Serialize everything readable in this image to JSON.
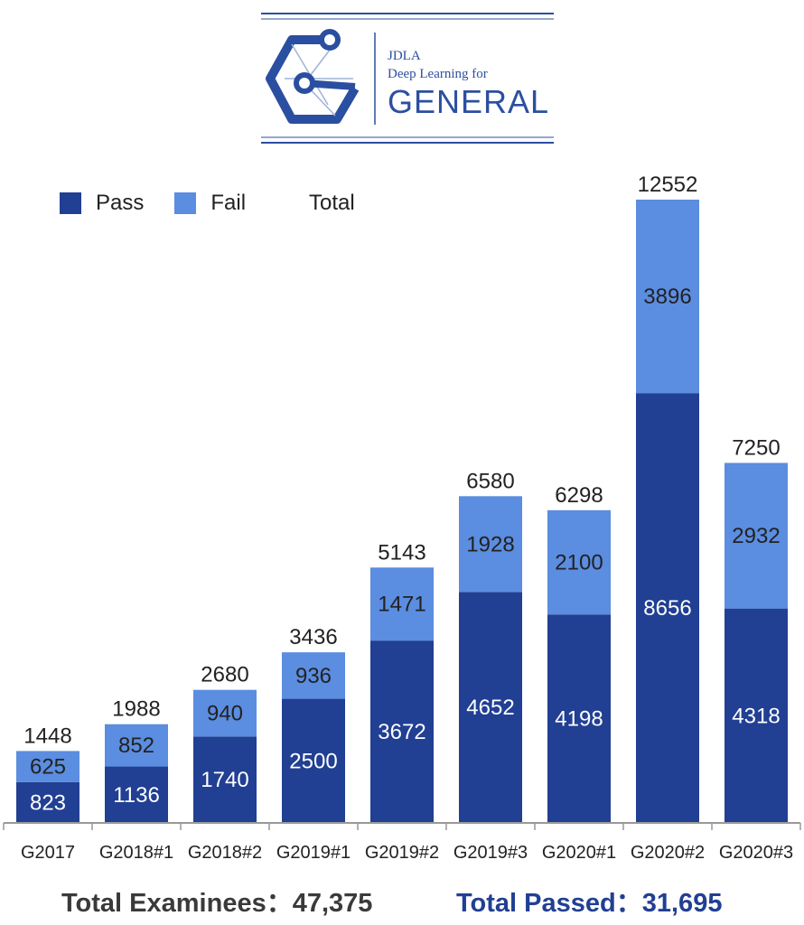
{
  "logo": {
    "line1": "JDLA",
    "line2": "Deep Learning for",
    "line3": "GENERAL",
    "icon": "hexagon-g-network-icon",
    "color": "#2b4fa0"
  },
  "legend": {
    "pass_label": "Pass",
    "fail_label": "Fail",
    "total_label": "Total"
  },
  "colors": {
    "pass": "#213f93",
    "fail": "#5b8de0",
    "axis": "#999999",
    "text": "#222222"
  },
  "chart_data": {
    "type": "bar",
    "stacked": true,
    "categories": [
      "G2017",
      "G2018#1",
      "G2018#2",
      "G2019#1",
      "G2019#2",
      "G2019#3",
      "G2020#1",
      "G2020#2",
      "G2020#3"
    ],
    "series": [
      {
        "name": "Pass",
        "values": [
          823,
          1136,
          1740,
          2500,
          3672,
          4652,
          4198,
          8656,
          4318
        ]
      },
      {
        "name": "Fail",
        "values": [
          625,
          852,
          940,
          936,
          1471,
          1928,
          2100,
          3896,
          2932
        ]
      }
    ],
    "totals": [
      1448,
      1988,
      2680,
      3436,
      5143,
      6580,
      6298,
      12552,
      7250
    ],
    "ylim": [
      0,
      12552
    ],
    "grid": false,
    "legend_position": "top-left"
  },
  "footer": {
    "total_examinees": "Total Examinees：47,375",
    "total_passed": "Total Passed：31,695"
  }
}
